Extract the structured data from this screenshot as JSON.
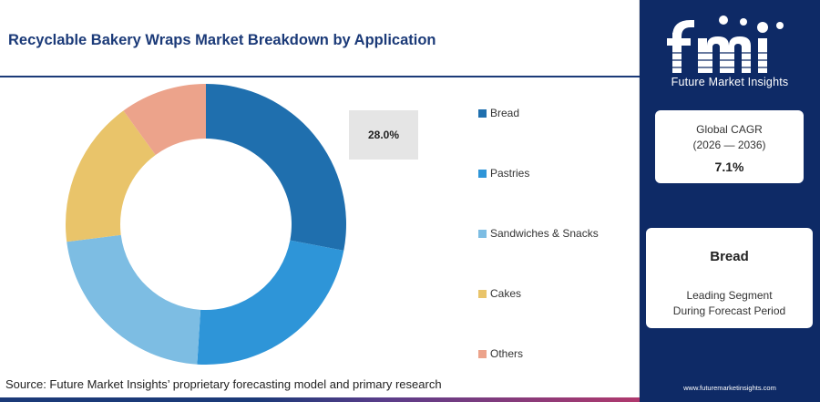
{
  "title": "Recyclable Bakery Wraps Market Breakdown by Application",
  "source": "Source: Future Market Insights’ proprietary forecasting model and primary research",
  "callout": "28.0%",
  "brand": {
    "logo_text": "Future Market Insights",
    "website": "www.futuremarketinsights.com",
    "panel_color": "#0e2a66"
  },
  "cagr": {
    "label": "Global CAGR",
    "period": "(2026 — 2036)",
    "value": "7.1%"
  },
  "leading_segment": {
    "name": "Bread",
    "line1": "Leading Segment",
    "line2": "During Forecast Period"
  },
  "chart_data": {
    "type": "pie",
    "subtype": "donut",
    "title": "Recyclable Bakery Wraps Market Breakdown by Application",
    "categories": [
      "Bread",
      "Pastries",
      "Sandwiches & Snacks",
      "Cakes",
      "Others"
    ],
    "values": [
      28.0,
      23.0,
      22.0,
      17.0,
      10.0
    ],
    "colors": [
      "#1f6fae",
      "#2e95d8",
      "#7dbde3",
      "#e9c46a",
      "#eca38b"
    ],
    "data_labels": [
      "28.0%"
    ],
    "legend_position": "right"
  }
}
